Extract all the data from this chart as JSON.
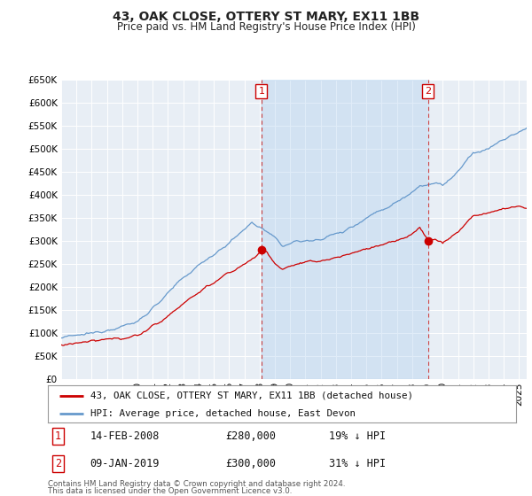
{
  "title": "43, OAK CLOSE, OTTERY ST MARY, EX11 1BB",
  "subtitle": "Price paid vs. HM Land Registry's House Price Index (HPI)",
  "legend_label_red": "43, OAK CLOSE, OTTERY ST MARY, EX11 1BB (detached house)",
  "legend_label_blue": "HPI: Average price, detached house, East Devon",
  "sale1_date": "14-FEB-2008",
  "sale1_price": 280000,
  "sale1_pct": "19% ↓ HPI",
  "sale1_year": 2008.12,
  "sale2_date": "09-JAN-2019",
  "sale2_price": 300000,
  "sale2_pct": "31% ↓ HPI",
  "sale2_year": 2019.03,
  "ylim": [
    0,
    650000
  ],
  "yticks": [
    0,
    50000,
    100000,
    150000,
    200000,
    250000,
    300000,
    350000,
    400000,
    450000,
    500000,
    550000,
    600000,
    650000
  ],
  "xlim_start": 1995.0,
  "xlim_end": 2025.5,
  "footnote_line1": "Contains HM Land Registry data © Crown copyright and database right 2024.",
  "footnote_line2": "This data is licensed under the Open Government Licence v3.0.",
  "background_color": "#ffffff",
  "plot_bg_color": "#e8eef5",
  "grid_color": "#ffffff",
  "red_line_color": "#cc0000",
  "blue_line_color": "#6699cc",
  "shade_color": "#ddeeff",
  "vline_color": "#cc4444",
  "marker_box_color": "#cc0000"
}
